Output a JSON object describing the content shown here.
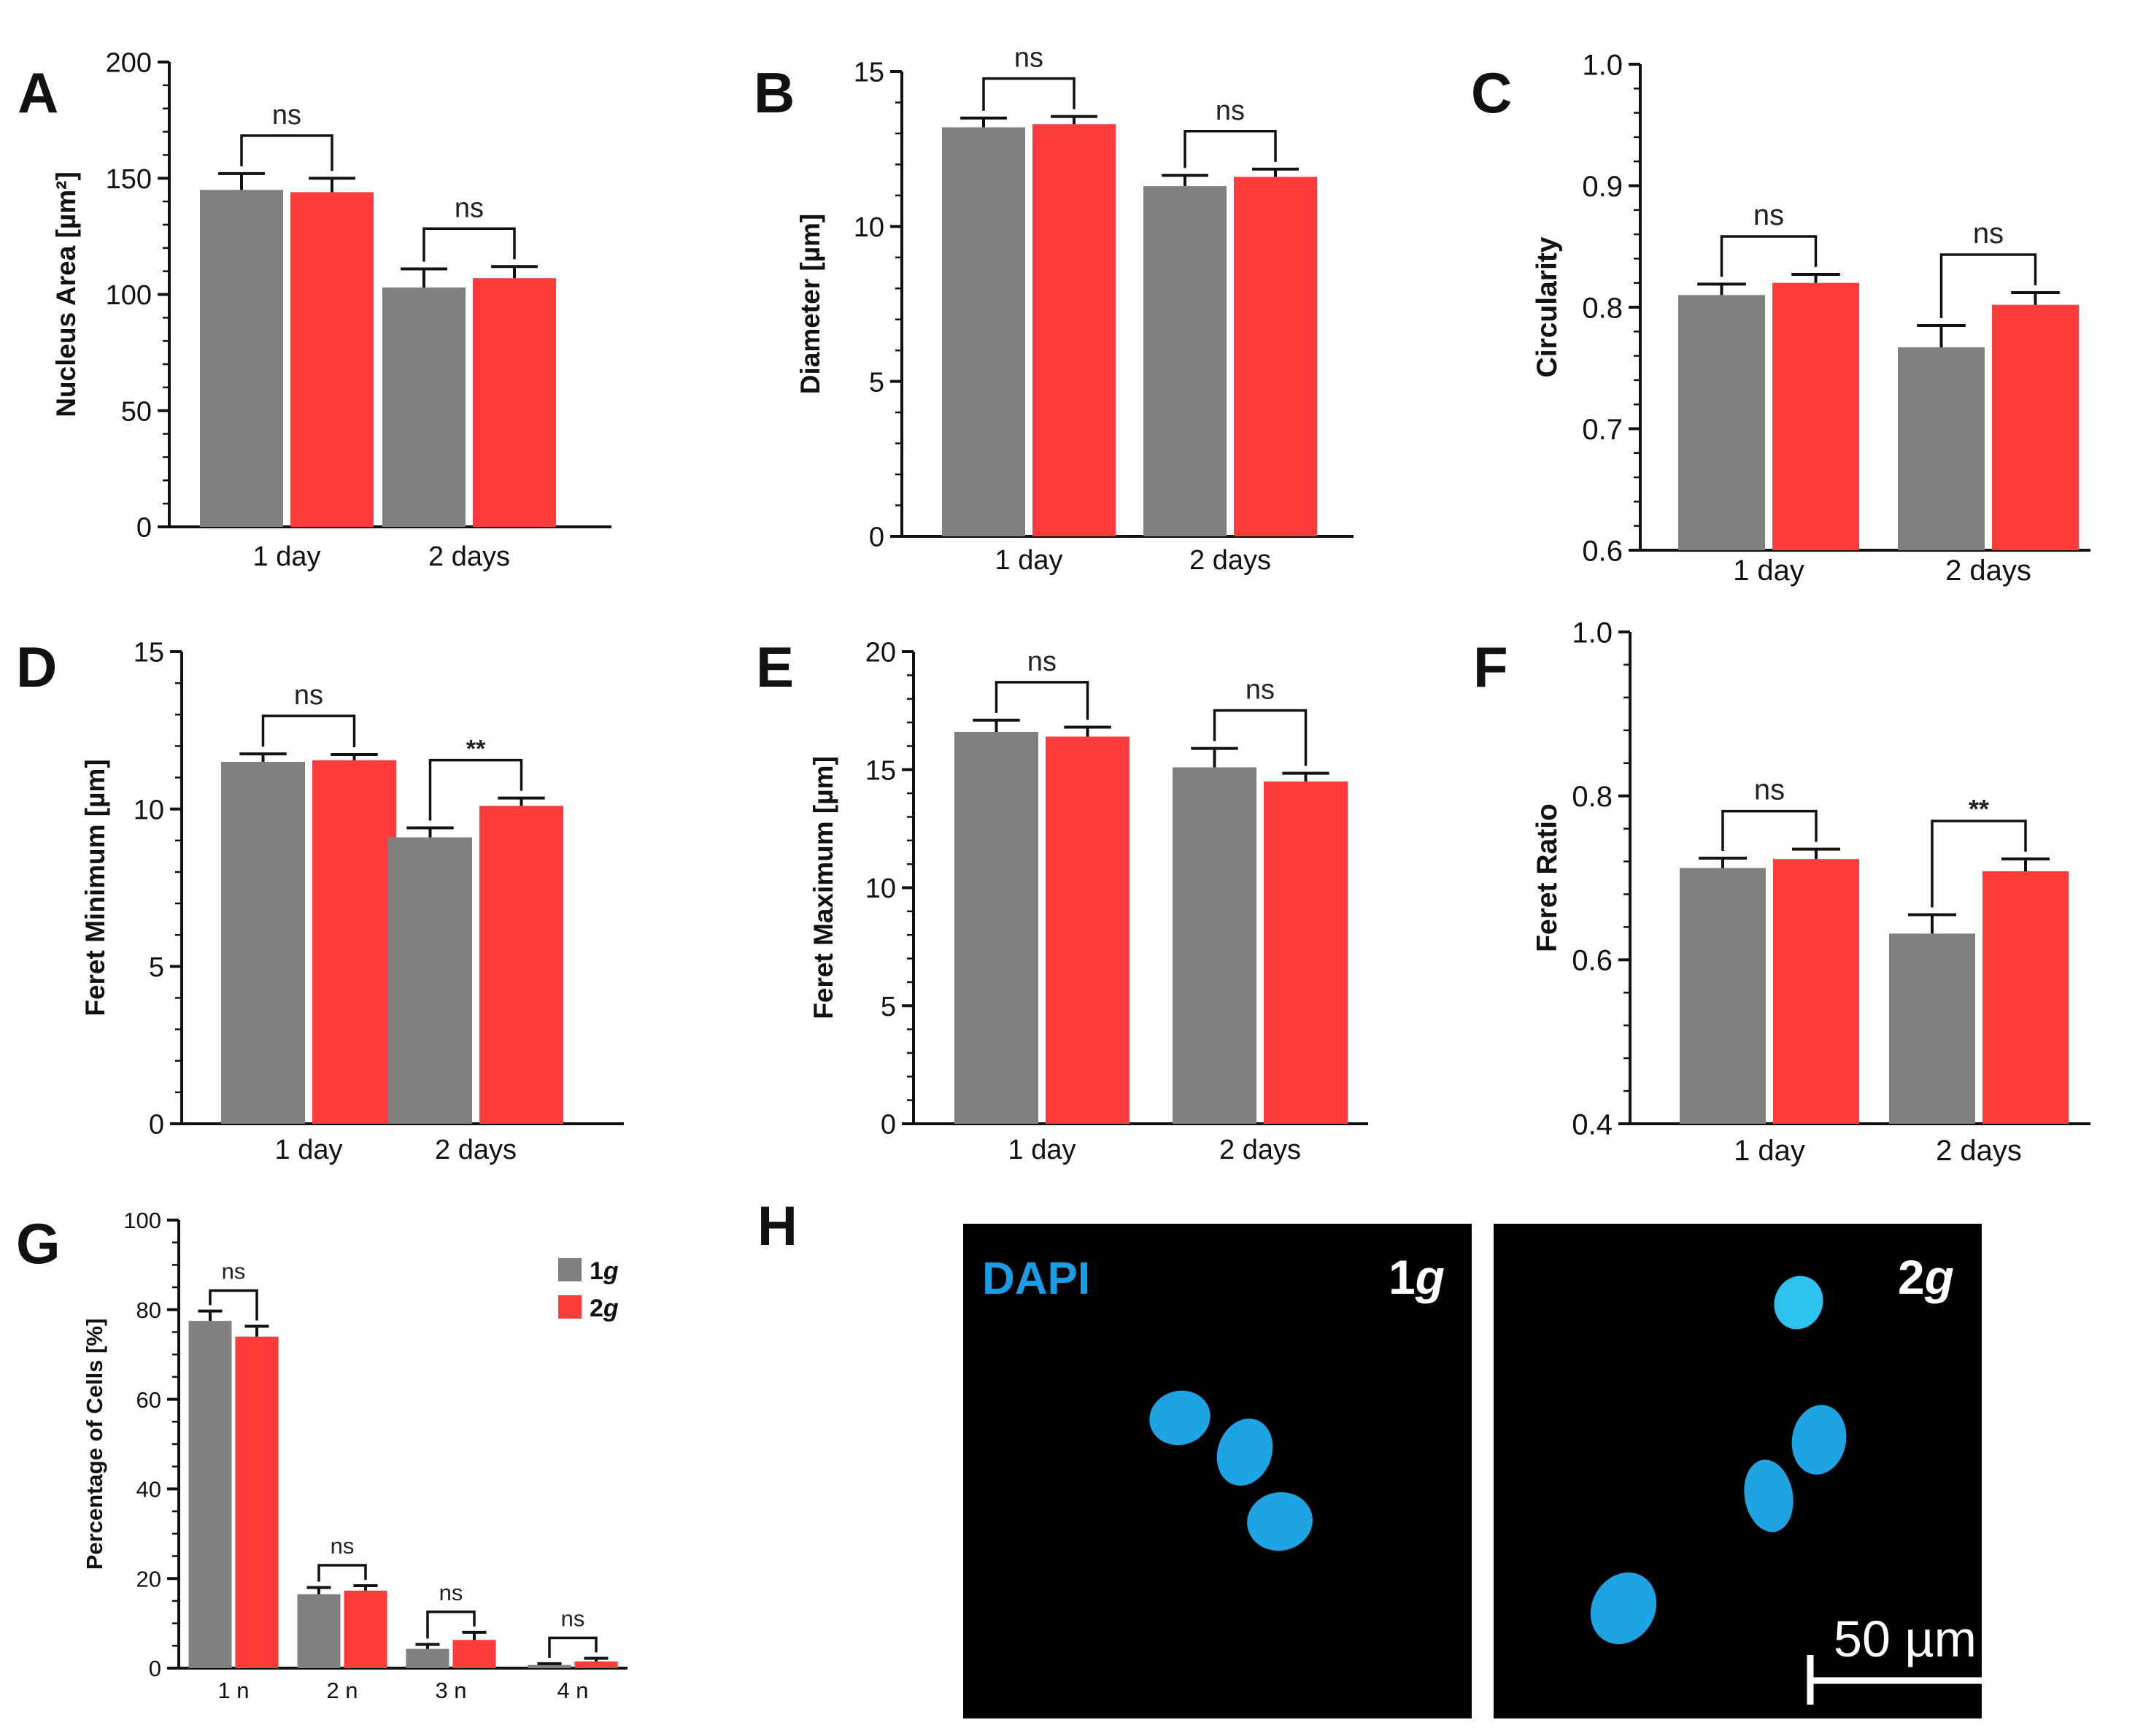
{
  "colors": {
    "group_1g": "#808080",
    "group_2g": "#fe3c3c",
    "axis": "#111111",
    "micrograph_bg": "#000000",
    "nucleus": "#1ea8e8",
    "dapi_label": "#1a9ce6",
    "scale": "#ffffff"
  },
  "chart_data": [
    {
      "id": "A",
      "type": "bar",
      "panel_label": "A",
      "ylabel": "Nucleus Area [µm²]",
      "categories": [
        "1 day",
        "2 days"
      ],
      "ylim": [
        0,
        200
      ],
      "yticks": [
        0,
        50,
        100,
        150,
        200
      ],
      "series": [
        {
          "name": "1g",
          "values": [
            145,
            103
          ],
          "errors": [
            7,
            8
          ]
        },
        {
          "name": "2g",
          "values": [
            144,
            107
          ],
          "errors": [
            6,
            5
          ]
        }
      ],
      "significance": [
        "ns",
        "ns"
      ]
    },
    {
      "id": "B",
      "type": "bar",
      "panel_label": "B",
      "ylabel": "Diameter [µm]",
      "categories": [
        "1 day",
        "2 days"
      ],
      "ylim": [
        0,
        15
      ],
      "yticks": [
        0,
        5,
        10,
        15
      ],
      "series": [
        {
          "name": "1g",
          "values": [
            13.2,
            11.3
          ],
          "errors": [
            0.3,
            0.35
          ]
        },
        {
          "name": "2g",
          "values": [
            13.3,
            11.6
          ],
          "errors": [
            0.25,
            0.25
          ]
        }
      ],
      "significance": [
        "ns",
        "ns"
      ]
    },
    {
      "id": "C",
      "type": "bar",
      "panel_label": "C",
      "ylabel": "Circularity",
      "categories": [
        "1 day",
        "2 days"
      ],
      "ylim": [
        0.6,
        1.0
      ],
      "yticks": [
        "0.6",
        "0.7",
        "0.8",
        "0.9",
        "1.0"
      ],
      "series": [
        {
          "name": "1g",
          "values": [
            0.81,
            0.767
          ],
          "errors": [
            0.009,
            0.018
          ]
        },
        {
          "name": "2g",
          "values": [
            0.82,
            0.802
          ],
          "errors": [
            0.007,
            0.01
          ]
        }
      ],
      "significance": [
        "ns",
        "ns"
      ]
    },
    {
      "id": "D",
      "type": "bar",
      "panel_label": "D",
      "ylabel": "Feret Minimum [µm]",
      "categories": [
        "1 day",
        "2 days"
      ],
      "ylim": [
        0,
        15
      ],
      "yticks": [
        0,
        5,
        10,
        15
      ],
      "series": [
        {
          "name": "1g",
          "values": [
            11.5,
            9.1
          ],
          "errors": [
            0.25,
            0.3
          ]
        },
        {
          "name": "2g",
          "values": [
            11.55,
            10.1
          ],
          "errors": [
            0.18,
            0.25
          ]
        }
      ],
      "significance": [
        "ns",
        "**"
      ]
    },
    {
      "id": "E",
      "type": "bar",
      "panel_label": "E",
      "ylabel": "Feret Maximum [µm]",
      "categories": [
        "1 day",
        "2 days"
      ],
      "ylim": [
        0,
        20
      ],
      "yticks": [
        0,
        5,
        10,
        15,
        20
      ],
      "series": [
        {
          "name": "1g",
          "values": [
            16.6,
            15.1
          ],
          "errors": [
            0.5,
            0.8
          ]
        },
        {
          "name": "2g",
          "values": [
            16.4,
            14.5
          ],
          "errors": [
            0.4,
            0.35
          ]
        }
      ],
      "significance": [
        "ns",
        "ns"
      ]
    },
    {
      "id": "F",
      "type": "bar",
      "panel_label": "F",
      "ylabel": "Feret Ratio",
      "categories": [
        "1 day",
        "2 days"
      ],
      "ylim": [
        0.4,
        1.0
      ],
      "yticks": [
        "0.4",
        "0.6",
        "0.8",
        "1.0"
      ],
      "series": [
        {
          "name": "1g",
          "values": [
            0.712,
            0.632
          ],
          "errors": [
            0.012,
            0.023
          ]
        },
        {
          "name": "2g",
          "values": [
            0.723,
            0.708
          ],
          "errors": [
            0.012,
            0.015
          ]
        }
      ],
      "significance": [
        "ns",
        "**"
      ]
    },
    {
      "id": "G",
      "type": "bar",
      "panel_label": "G",
      "ylabel": "Percentage of Cells [%]",
      "categories": [
        "1 n",
        "2 n",
        "3 n",
        "4 n"
      ],
      "ylim": [
        0,
        100
      ],
      "yticks": [
        0,
        20,
        40,
        60,
        80,
        100
      ],
      "series": [
        {
          "name": "1g",
          "values": [
            77.5,
            16.5,
            4.3,
            0.7
          ],
          "errors": [
            2.2,
            1.5,
            1.0,
            0.3
          ]
        },
        {
          "name": "2g",
          "values": [
            74,
            17.3,
            6.3,
            1.5
          ],
          "errors": [
            2.3,
            1.1,
            1.7,
            0.7
          ]
        }
      ],
      "significance": [
        "ns",
        "ns",
        "ns",
        "ns"
      ],
      "legend": [
        {
          "num": "1",
          "sym": "g"
        },
        {
          "num": "2",
          "sym": "g"
        }
      ]
    }
  ],
  "micrograph": {
    "panel_label": "H",
    "stain_label": "DAPI",
    "panels": [
      {
        "tag_num": "1",
        "tag_sym": "g"
      },
      {
        "tag_num": "2",
        "tag_sym": "g"
      }
    ],
    "scale_bar_label": "50 µm"
  }
}
